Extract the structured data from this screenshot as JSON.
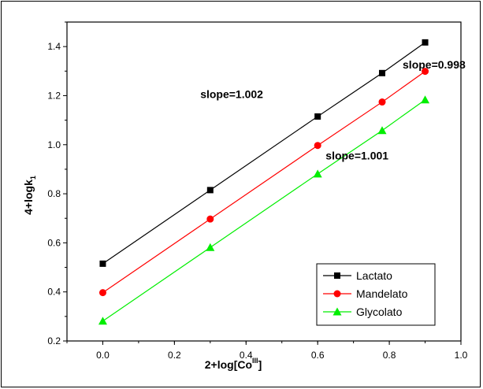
{
  "chart_data": {
    "type": "line",
    "xlabel": "2+log[Co",
    "xlabel_sup": "III",
    "xlabel_end": "]",
    "ylabel": "4+logk",
    "ylabel_sub": "1",
    "xlim": [
      -0.1,
      1.0
    ],
    "ylim": [
      0.2,
      1.5
    ],
    "x_ticks": [
      "0.0",
      "0.2",
      "0.4",
      "0.6",
      "0.8",
      "1.0"
    ],
    "x_tick_values": [
      0.0,
      0.2,
      0.4,
      0.6,
      0.8,
      1.0
    ],
    "y_ticks": [
      "0.2",
      "0.4",
      "0.6",
      "0.8",
      "1.0",
      "1.2",
      "1.4"
    ],
    "y_tick_values": [
      0.2,
      0.4,
      0.6,
      0.8,
      1.0,
      1.2,
      1.4
    ],
    "grid": false,
    "legend_position": "bottom-right",
    "series": [
      {
        "name": "Lactato",
        "color": "#000000",
        "marker": "square",
        "x": [
          0.0,
          0.3,
          0.6,
          0.78,
          0.9
        ],
        "y": [
          0.515,
          0.815,
          1.115,
          1.292,
          1.417
        ]
      },
      {
        "name": "Mandelato",
        "color": "#ff0000",
        "marker": "circle",
        "x": [
          0.0,
          0.3,
          0.6,
          0.78,
          0.9
        ],
        "y": [
          0.397,
          0.697,
          0.997,
          1.174,
          1.299
        ]
      },
      {
        "name": "Glycolato",
        "color": "#00ee00",
        "marker": "triangle",
        "x": [
          0.0,
          0.3,
          0.6,
          0.78,
          0.9
        ],
        "y": [
          0.281,
          0.581,
          0.881,
          1.058,
          1.183
        ]
      }
    ],
    "annotations": [
      {
        "text": "slope=1.002",
        "x": 0.36,
        "y": 1.19
      },
      {
        "text": "slope=0.998",
        "x": 0.925,
        "y": 1.31
      },
      {
        "text": "slope=1.001",
        "x": 0.71,
        "y": 0.94
      }
    ]
  }
}
